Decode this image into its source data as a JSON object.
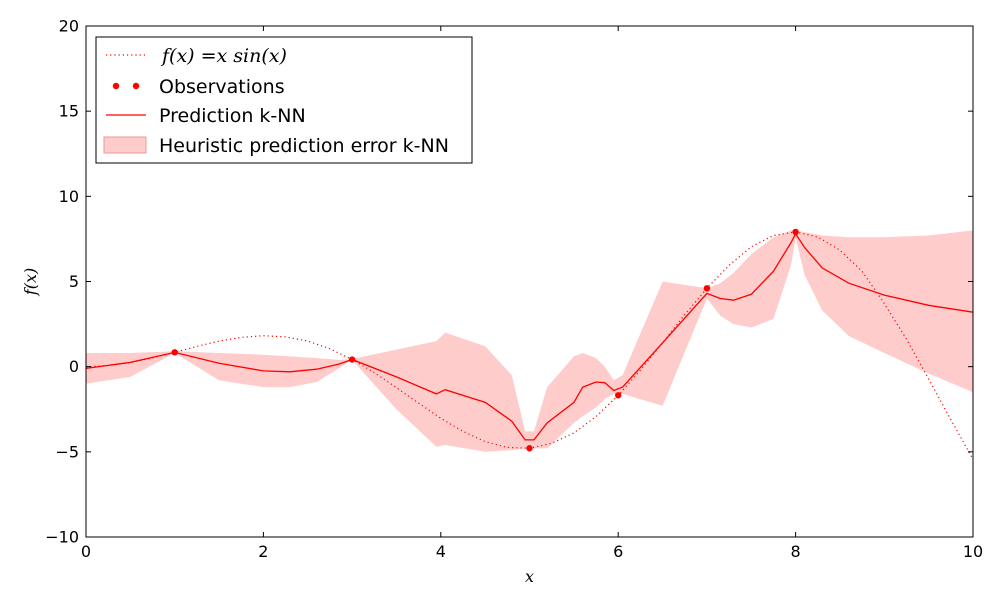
{
  "chart_data": {
    "type": "line",
    "xlabel": "x",
    "ylabel": "f(x)",
    "xlim": [
      0,
      10
    ],
    "ylim": [
      -10,
      20
    ],
    "xticks": [
      0,
      2,
      4,
      6,
      8,
      10
    ],
    "yticks": [
      -10,
      -5,
      0,
      5,
      10,
      15,
      20
    ],
    "xtick_labels": [
      "0",
      "2",
      "4",
      "6",
      "8",
      "10"
    ],
    "ytick_labels": [
      "−10",
      "−5",
      "0",
      "5",
      "10",
      "15",
      "20"
    ],
    "grid": false,
    "legend_position": "top-left",
    "color": "#ff0000",
    "band_color": "#ffcccc",
    "series": [
      {
        "name": "f(x) = x sin(x)",
        "kind": "true_function",
        "style": "dotted",
        "x": [
          0,
          0.25,
          0.5,
          0.75,
          1,
          1.25,
          1.5,
          1.75,
          2,
          2.25,
          2.5,
          2.75,
          3,
          3.25,
          3.5,
          3.75,
          4,
          4.25,
          4.5,
          4.75,
          5,
          5.25,
          5.5,
          5.75,
          6,
          6.25,
          6.5,
          6.75,
          7,
          7.25,
          7.5,
          7.75,
          8,
          8.25,
          8.5,
          8.75,
          9,
          9.25,
          9.5,
          9.75,
          10
        ],
        "y": [
          0,
          0.06,
          0.24,
          0.51,
          0.84,
          1.19,
          1.5,
          1.72,
          1.82,
          1.75,
          1.5,
          1.05,
          0.42,
          -0.35,
          -1.23,
          -2.14,
          -3.03,
          -3.8,
          -4.4,
          -4.74,
          -4.79,
          -4.5,
          -3.89,
          -2.93,
          -1.68,
          -0.21,
          1.4,
          3.05,
          4.6,
          5.95,
          7.04,
          7.7,
          7.91,
          7.61,
          6.84,
          5.6,
          3.71,
          1.61,
          -0.71,
          -3.11,
          -5.44
        ]
      },
      {
        "name": "Observations",
        "kind": "observations",
        "style": "markers",
        "x": [
          1,
          3,
          5,
          6,
          7,
          8
        ],
        "y": [
          0.84,
          0.42,
          -4.79,
          -1.68,
          4.6,
          7.91
        ]
      },
      {
        "name": "Prediction k-NN",
        "kind": "prediction",
        "style": "solid",
        "x": [
          0,
          0.5,
          1,
          1.5,
          2,
          2.3,
          2.6,
          2.85,
          3,
          3.5,
          3.95,
          4.05,
          4.5,
          4.8,
          4.95,
          5.05,
          5.2,
          5.5,
          5.6,
          5.75,
          5.85,
          5.95,
          6.05,
          6.5,
          7,
          7.15,
          7.3,
          7.5,
          7.75,
          7.95,
          8,
          8.1,
          8.3,
          8.6,
          9,
          9.5,
          10
        ],
        "y": [
          -0.1,
          0.25,
          0.84,
          0.2,
          -0.25,
          -0.3,
          -0.15,
          0.15,
          0.42,
          -0.6,
          -1.6,
          -1.35,
          -2.1,
          -3.2,
          -4.3,
          -4.3,
          -3.3,
          -2.1,
          -1.2,
          -0.9,
          -0.95,
          -1.4,
          -1.2,
          1.4,
          4.3,
          4.0,
          3.9,
          4.25,
          5.6,
          7.3,
          7.8,
          7.0,
          5.8,
          4.9,
          4.2,
          3.6,
          3.2
        ]
      }
    ],
    "band": {
      "name": "Heuristic prediction error k-NN",
      "x": [
        0,
        0.5,
        1,
        1.5,
        2,
        2.3,
        2.6,
        2.85,
        3,
        3.5,
        3.95,
        4.05,
        4.5,
        4.8,
        4.95,
        5.05,
        5.2,
        5.5,
        5.6,
        5.75,
        5.85,
        5.95,
        6.05,
        6.5,
        7,
        7.15,
        7.3,
        7.5,
        7.75,
        7.95,
        8,
        8.1,
        8.3,
        8.6,
        9,
        9.5,
        10
      ],
      "upper": [
        0.8,
        0.8,
        0.9,
        0.8,
        0.7,
        0.6,
        0.5,
        0.4,
        0.45,
        1.0,
        1.5,
        2.0,
        1.2,
        -0.5,
        -3.8,
        -3.8,
        -1.2,
        0.6,
        0.8,
        0.5,
        0.0,
        -0.8,
        -0.5,
        5.0,
        4.6,
        4.9,
        5.5,
        6.6,
        7.6,
        8.0,
        8.0,
        7.9,
        7.7,
        7.6,
        7.6,
        7.7,
        8.0
      ],
      "lower": [
        -1.0,
        -0.6,
        0.8,
        -0.8,
        -1.2,
        -1.2,
        -0.9,
        -0.1,
        0.4,
        -2.5,
        -4.7,
        -4.6,
        -5.0,
        -4.9,
        -4.8,
        -4.8,
        -4.8,
        -3.3,
        -2.9,
        -2.4,
        -1.9,
        -1.6,
        -1.6,
        -2.3,
        4.0,
        3.0,
        2.5,
        2.3,
        2.8,
        6.0,
        7.6,
        5.4,
        3.3,
        1.8,
        0.8,
        -0.4,
        -1.5
      ]
    }
  },
  "legend": {
    "items": [
      {
        "label": "f(x) =x sin(x)",
        "kind": "dotted-line"
      },
      {
        "label": "Observations",
        "kind": "markers"
      },
      {
        "label": "Prediction k-NN",
        "kind": "solid-line"
      },
      {
        "label": "Heuristic prediction error k-NN",
        "kind": "patch"
      }
    ]
  }
}
